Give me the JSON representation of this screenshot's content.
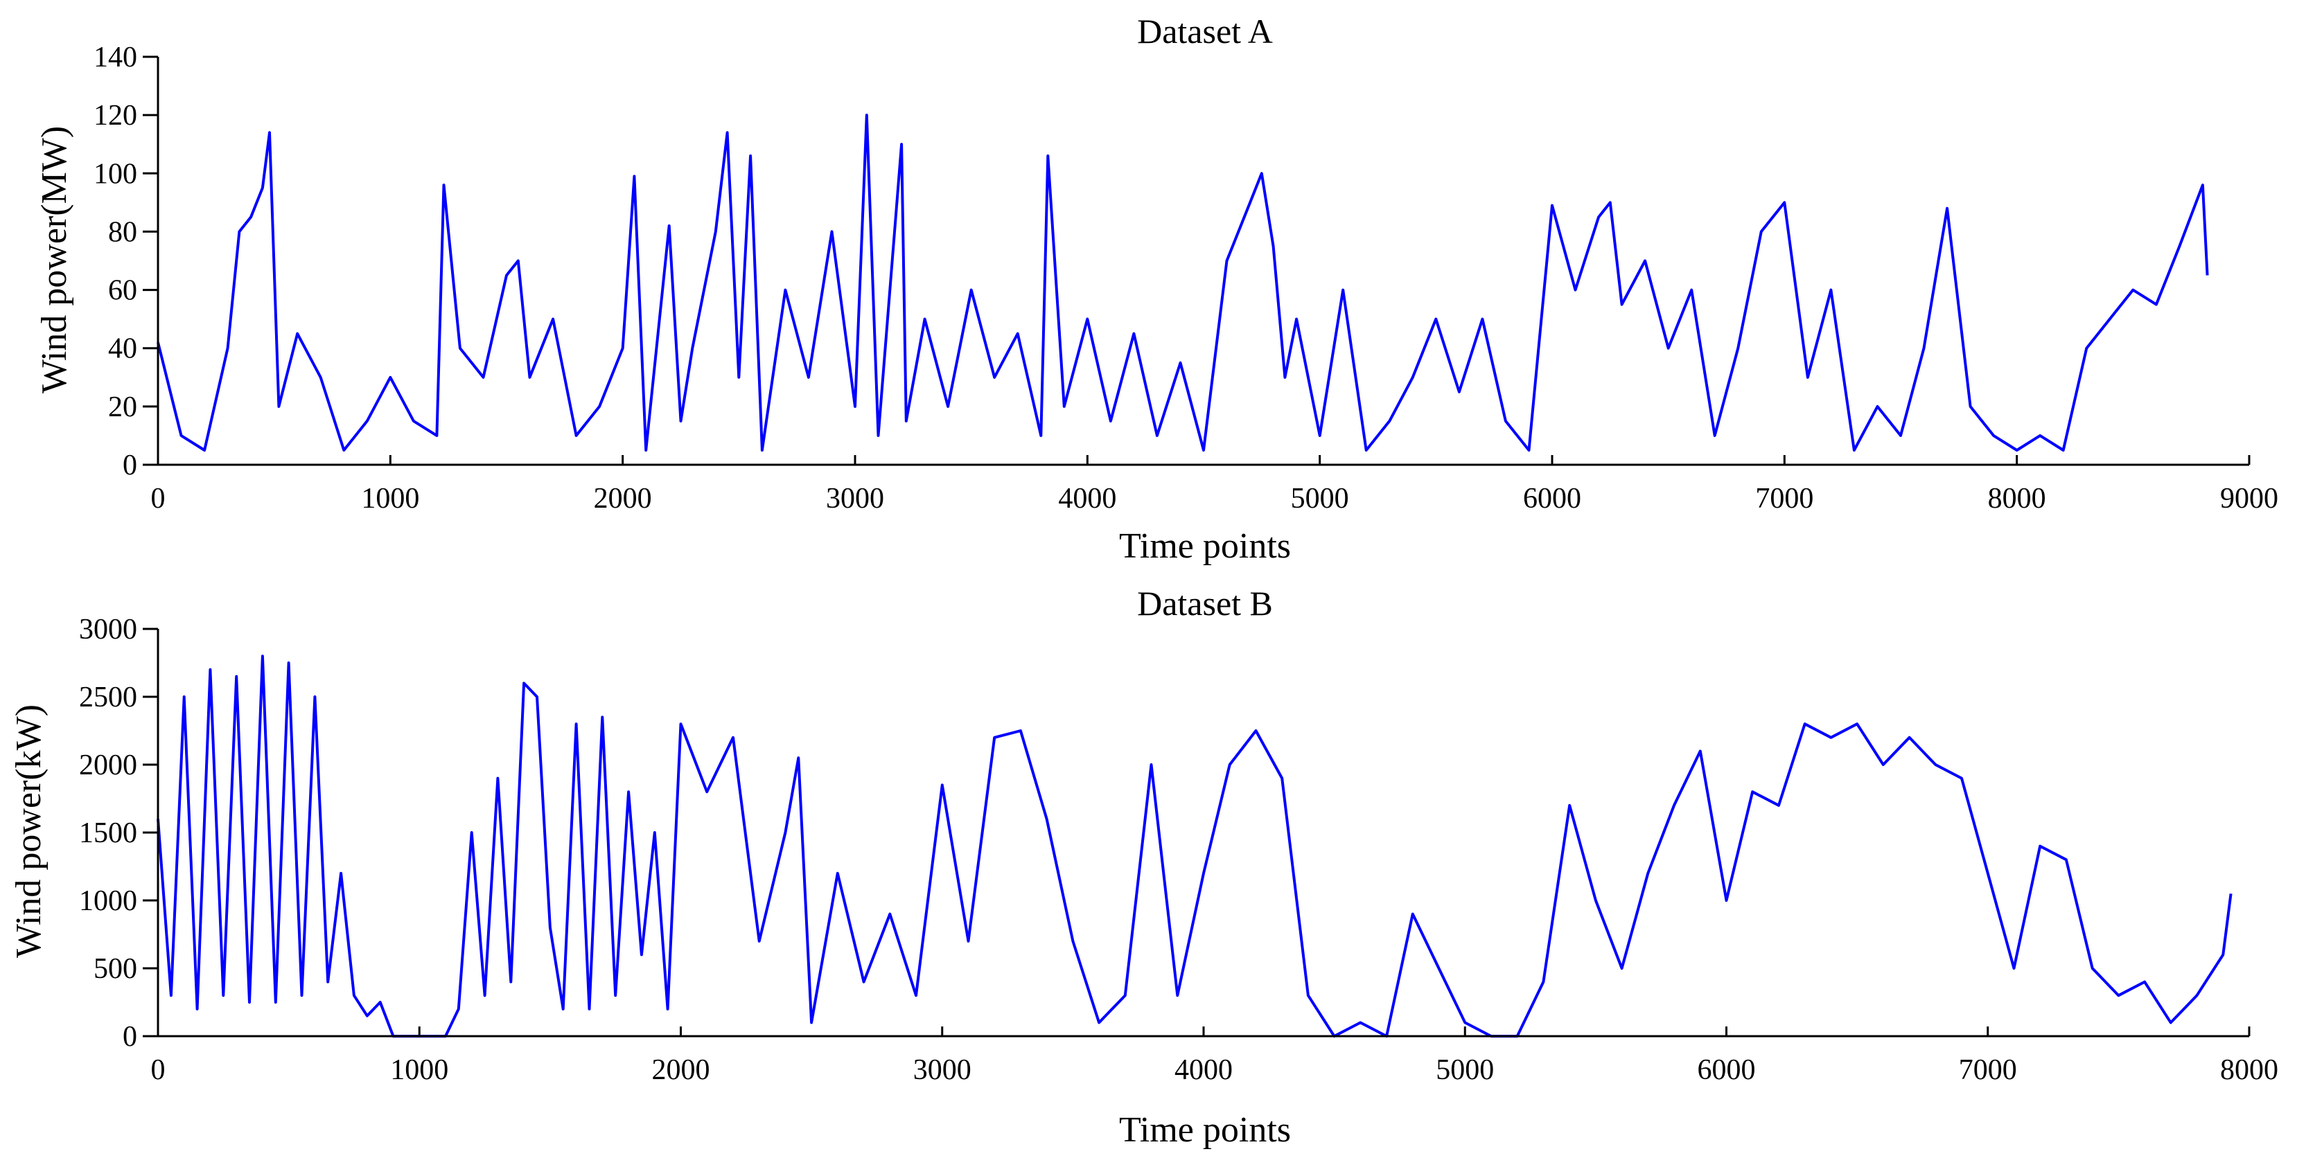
{
  "chart_data": [
    {
      "type": "line",
      "title": "Dataset A",
      "xlabel": "Time points",
      "ylabel": "Wind power(MW)",
      "xlim": [
        0,
        9000
      ],
      "ylim": [
        0,
        140
      ],
      "xticks": [
        0,
        1000,
        2000,
        3000,
        4000,
        5000,
        6000,
        7000,
        8000,
        9000
      ],
      "yticks": [
        0,
        20,
        40,
        60,
        80,
        100,
        120,
        140
      ],
      "grid": false,
      "series": [
        {
          "name": "Wind power",
          "color": "#0000ff",
          "x": [
            0,
            100,
            200,
            300,
            350,
            400,
            450,
            480,
            520,
            600,
            700,
            800,
            900,
            1000,
            1100,
            1200,
            1230,
            1300,
            1400,
            1500,
            1550,
            1600,
            1700,
            1800,
            1900,
            2000,
            2050,
            2100,
            2200,
            2250,
            2300,
            2400,
            2450,
            2500,
            2550,
            2600,
            2700,
            2800,
            2900,
            3000,
            3050,
            3100,
            3200,
            3220,
            3300,
            3400,
            3500,
            3600,
            3700,
            3800,
            3830,
            3900,
            4000,
            4100,
            4200,
            4300,
            4400,
            4500,
            4600,
            4700,
            4750,
            4800,
            4850,
            4900,
            5000,
            5100,
            5200,
            5300,
            5400,
            5500,
            5600,
            5700,
            5800,
            5900,
            6000,
            6100,
            6200,
            6250,
            6300,
            6400,
            6500,
            6600,
            6700,
            6800,
            6900,
            7000,
            7050,
            7100,
            7200,
            7300,
            7400,
            7500,
            7600,
            7700,
            7800,
            7900,
            8000,
            8100,
            8200,
            8300,
            8400,
            8500,
            8600,
            8700,
            8800,
            8820
          ],
          "values": [
            42,
            10,
            5,
            40,
            80,
            85,
            95,
            114,
            20,
            45,
            30,
            5,
            15,
            30,
            15,
            10,
            96,
            40,
            30,
            65,
            70,
            30,
            50,
            10,
            20,
            40,
            99,
            5,
            82,
            15,
            40,
            80,
            114,
            30,
            106,
            5,
            60,
            30,
            80,
            20,
            120,
            10,
            110,
            15,
            50,
            20,
            60,
            30,
            45,
            10,
            106,
            20,
            50,
            15,
            45,
            10,
            35,
            5,
            70,
            90,
            100,
            75,
            30,
            50,
            10,
            60,
            5,
            15,
            30,
            50,
            25,
            50,
            15,
            5,
            89,
            60,
            85,
            90,
            55,
            70,
            40,
            60,
            10,
            40,
            80,
            90,
            60,
            30,
            60,
            5,
            20,
            10,
            40,
            88,
            20,
            10,
            5,
            10,
            5,
            40,
            50,
            60,
            55,
            75,
            96,
            65
          ]
        }
      ]
    },
    {
      "type": "line",
      "title": "Dataset B",
      "xlabel": "Time points",
      "ylabel": "Wind power(kW)",
      "xlim": [
        0,
        8000
      ],
      "ylim": [
        0,
        3000
      ],
      "xticks": [
        0,
        1000,
        2000,
        3000,
        4000,
        5000,
        6000,
        7000,
        8000
      ],
      "yticks": [
        0,
        500,
        1000,
        1500,
        2000,
        2500,
        3000
      ],
      "grid": false,
      "series": [
        {
          "name": "Wind power",
          "color": "#0000ff",
          "x": [
            0,
            50,
            100,
            150,
            200,
            250,
            300,
            350,
            400,
            450,
            500,
            550,
            600,
            650,
            700,
            750,
            800,
            850,
            900,
            1000,
            1100,
            1150,
            1200,
            1250,
            1300,
            1350,
            1400,
            1450,
            1500,
            1550,
            1600,
            1650,
            1700,
            1750,
            1800,
            1850,
            1900,
            1950,
            2000,
            2100,
            2200,
            2300,
            2400,
            2450,
            2500,
            2600,
            2700,
            2800,
            2900,
            3000,
            3100,
            3200,
            3300,
            3400,
            3500,
            3600,
            3700,
            3800,
            3900,
            4000,
            4100,
            4200,
            4300,
            4400,
            4500,
            4600,
            4700,
            4800,
            4900,
            5000,
            5100,
            5200,
            5300,
            5400,
            5500,
            5600,
            5700,
            5800,
            5900,
            6000,
            6100,
            6200,
            6300,
            6400,
            6500,
            6600,
            6700,
            6800,
            6900,
            7000,
            7100,
            7200,
            7300,
            7400,
            7500,
            7600,
            7700,
            7800,
            7900,
            7930
          ],
          "values": [
            1600,
            300,
            2500,
            200,
            2700,
            300,
            2650,
            250,
            2800,
            250,
            2750,
            300,
            2500,
            400,
            1200,
            300,
            150,
            250,
            0,
            0,
            0,
            200,
            1500,
            300,
            1900,
            400,
            2600,
            2500,
            800,
            200,
            2300,
            200,
            2350,
            300,
            1800,
            600,
            1500,
            200,
            2300,
            1800,
            2200,
            700,
            1500,
            2050,
            100,
            1200,
            400,
            900,
            300,
            1850,
            700,
            2200,
            2250,
            1600,
            700,
            100,
            300,
            2000,
            300,
            1200,
            2000,
            2250,
            1900,
            300,
            0,
            100,
            0,
            900,
            500,
            100,
            0,
            0,
            400,
            1700,
            1000,
            500,
            1200,
            1700,
            2100,
            1000,
            1800,
            1700,
            2300,
            2200,
            2300,
            2000,
            2200,
            2000,
            1900,
            1200,
            500,
            1400,
            1300,
            500,
            300,
            400,
            100,
            300,
            600,
            1050
          ]
        }
      ]
    }
  ]
}
